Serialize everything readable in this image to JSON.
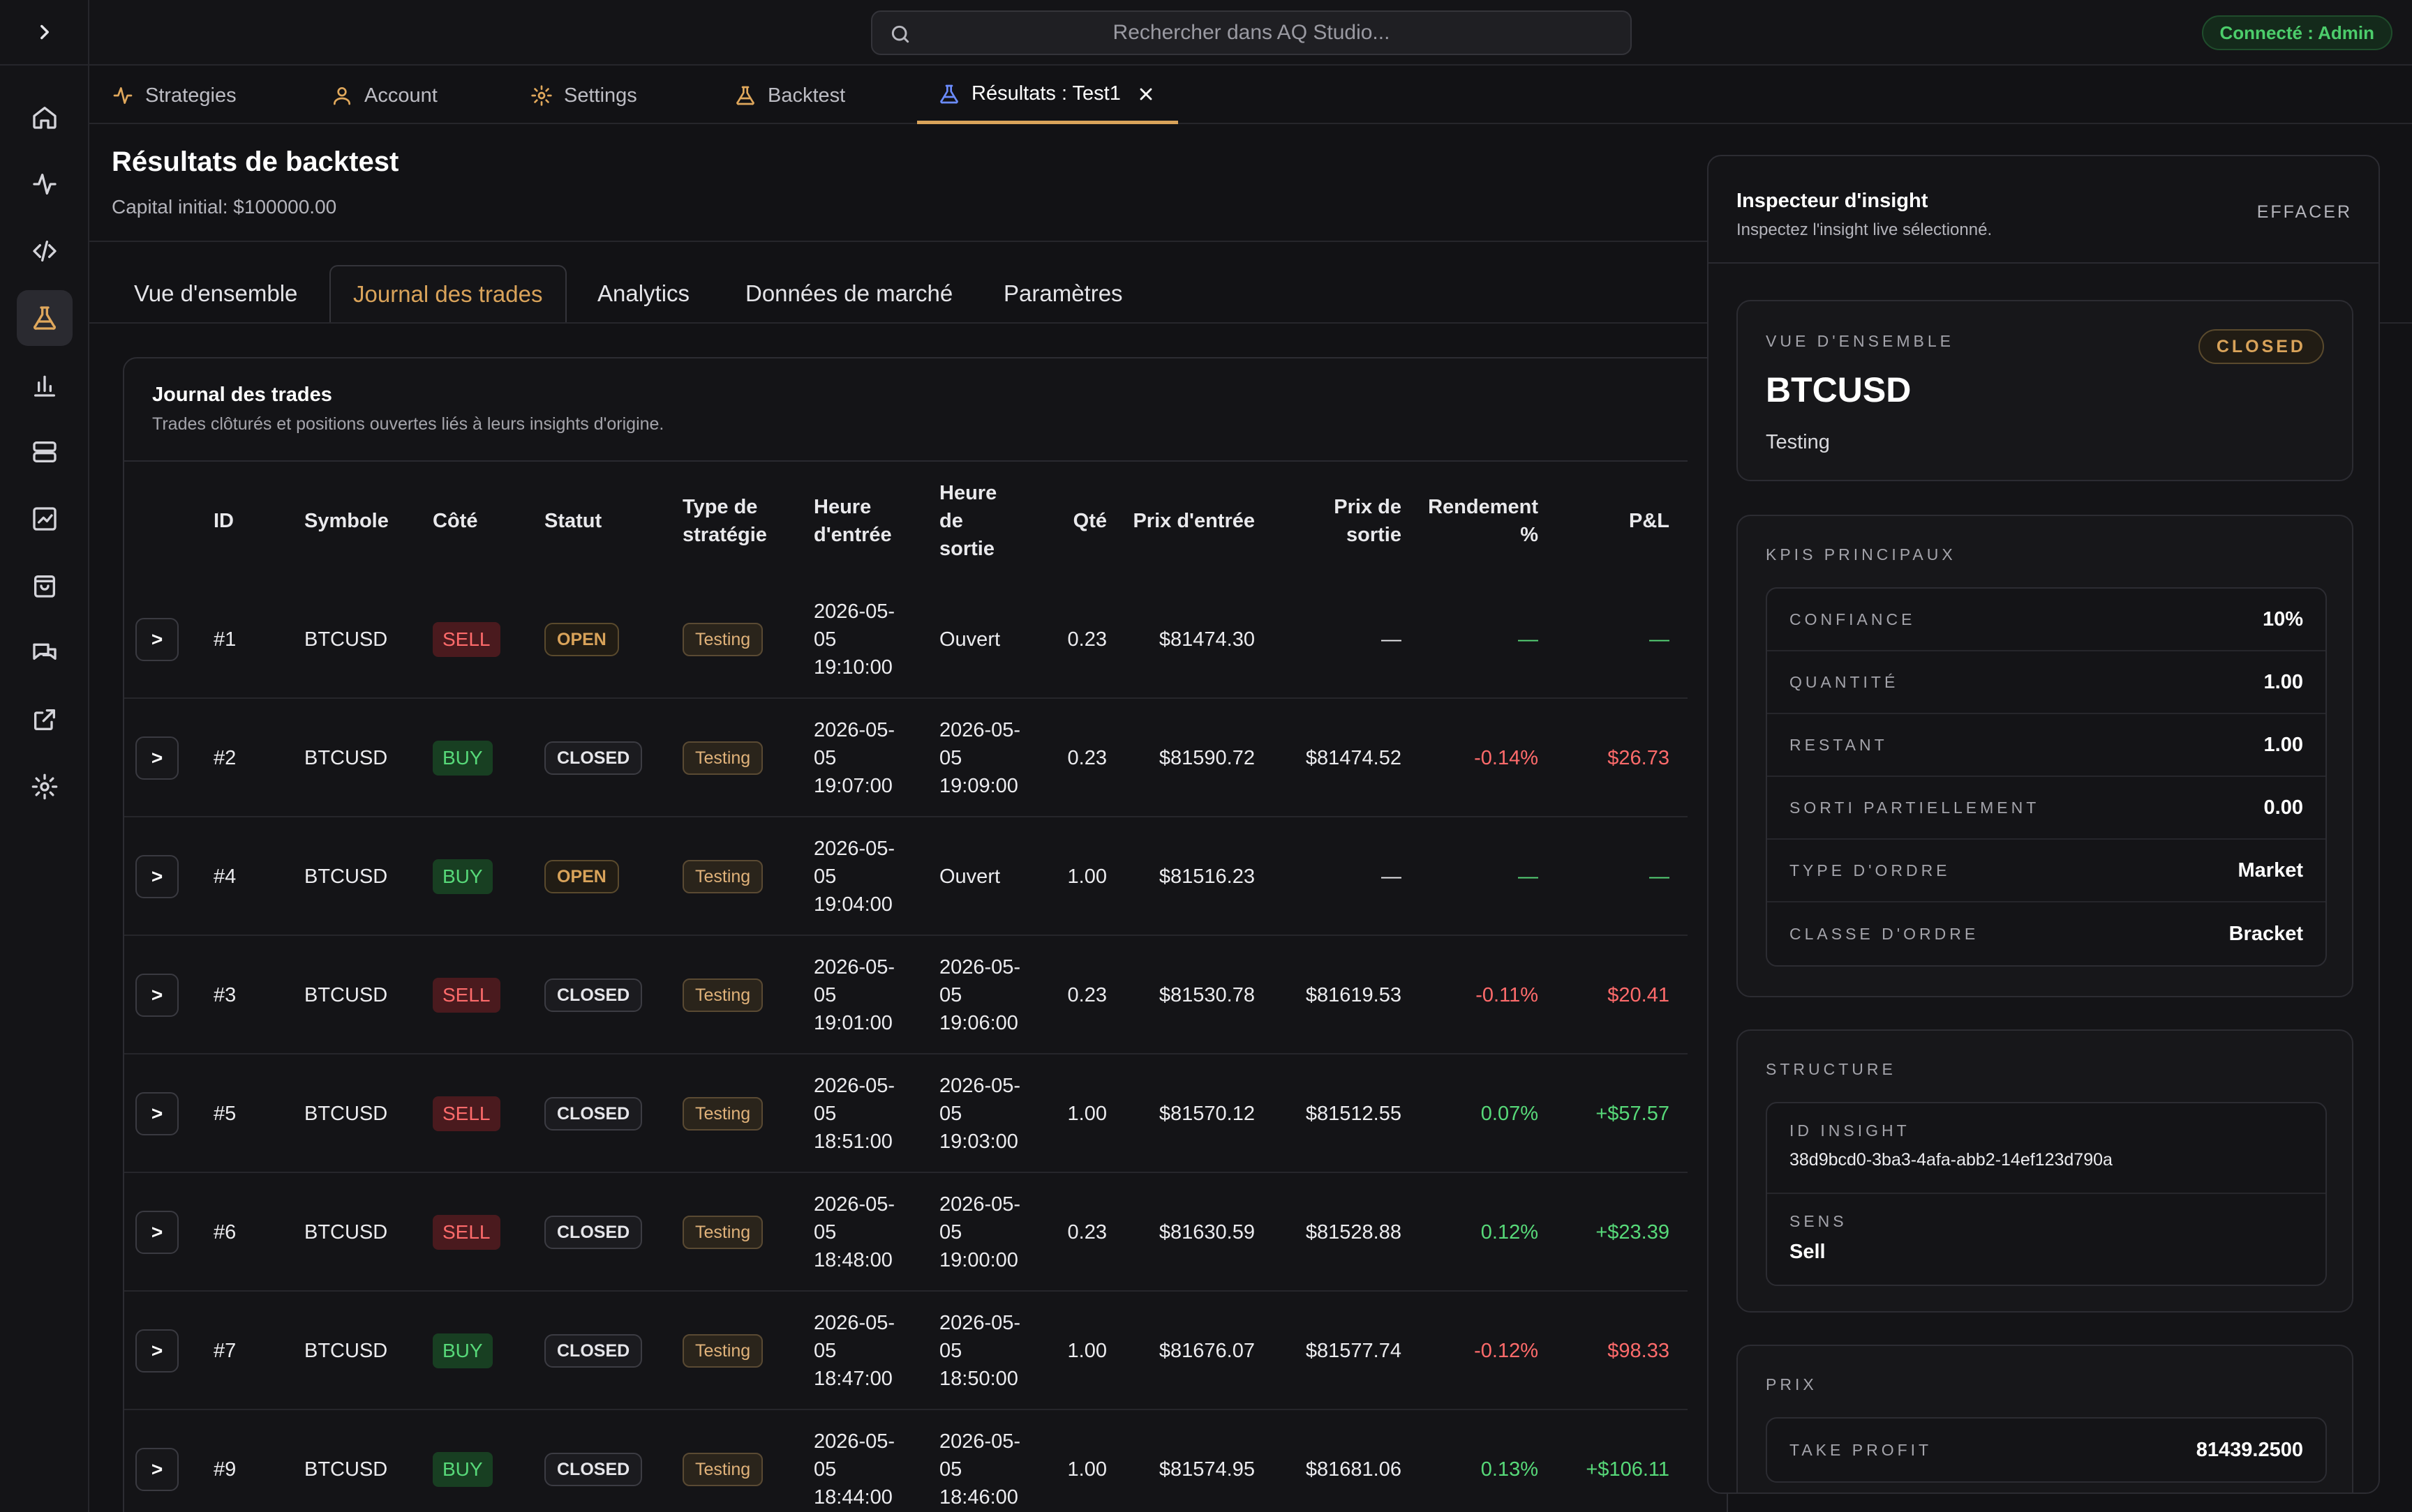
{
  "search": {
    "placeholder": "Rechercher dans AQ Studio..."
  },
  "user": {
    "status": "Connecté : Admin"
  },
  "tabs": [
    {
      "label": "Strategies",
      "icon": "activity-icon"
    },
    {
      "label": "Account",
      "icon": "user-icon"
    },
    {
      "label": "Settings",
      "icon": "gear-icon"
    },
    {
      "label": "Backtest",
      "icon": "flask-icon"
    },
    {
      "label": "Résultats : Test1",
      "icon": "flask-icon",
      "active": true
    }
  ],
  "page": {
    "title": "Résultats de backtest",
    "subtitle": "Capital initial: $100000.00"
  },
  "subtabs": [
    "Vue d'ensemble",
    "Journal des trades",
    "Analytics",
    "Données de marché",
    "Paramètres"
  ],
  "journal": {
    "title": "Journal des trades",
    "subtitle": "Trades clôturés et positions ouvertes liés à leurs insights d'origine.",
    "columns": {
      "id": "ID",
      "symbol": "Symbole",
      "side": "Côté",
      "status": "Statut",
      "type": "Type de stratégie",
      "entry_time": "Heure d'entrée",
      "exit_time": "Heure de sortie",
      "qty": "Qté",
      "entry_price": "Prix d'entrée",
      "exit_price": "Prix de sortie",
      "return_pct": "Rendement %",
      "pnl": "P&L"
    },
    "expand_label": ">",
    "rows": [
      {
        "id": "#1",
        "symbol": "BTCUSD",
        "side": "SELL",
        "status": "OPEN",
        "type": "Testing",
        "entry_time": "2026-05-05 19:10:00",
        "exit_time": "Ouvert",
        "qty": "0.23",
        "entry_price": "$81474.30",
        "exit_price": "—",
        "return_pct": "—",
        "pnl": "—"
      },
      {
        "id": "#2",
        "symbol": "BTCUSD",
        "side": "BUY",
        "status": "CLOSED",
        "type": "Testing",
        "entry_time": "2026-05-05 19:07:00",
        "exit_time": "2026-05-05 19:09:00",
        "qty": "0.23",
        "entry_price": "$81590.72",
        "exit_price": "$81474.52",
        "return_pct": "-0.14%",
        "pnl": "$26.73"
      },
      {
        "id": "#4",
        "symbol": "BTCUSD",
        "side": "BUY",
        "status": "OPEN",
        "type": "Testing",
        "entry_time": "2026-05-05 19:04:00",
        "exit_time": "Ouvert",
        "qty": "1.00",
        "entry_price": "$81516.23",
        "exit_price": "—",
        "return_pct": "—",
        "pnl": "—"
      },
      {
        "id": "#3",
        "symbol": "BTCUSD",
        "side": "SELL",
        "status": "CLOSED",
        "type": "Testing",
        "entry_time": "2026-05-05 19:01:00",
        "exit_time": "2026-05-05 19:06:00",
        "qty": "0.23",
        "entry_price": "$81530.78",
        "exit_price": "$81619.53",
        "return_pct": "-0.11%",
        "pnl": "$20.41"
      },
      {
        "id": "#5",
        "symbol": "BTCUSD",
        "side": "SELL",
        "status": "CLOSED",
        "type": "Testing",
        "entry_time": "2026-05-05 18:51:00",
        "exit_time": "2026-05-05 19:03:00",
        "qty": "1.00",
        "entry_price": "$81570.12",
        "exit_price": "$81512.55",
        "return_pct": "0.07%",
        "pnl": "+$57.57"
      },
      {
        "id": "#6",
        "symbol": "BTCUSD",
        "side": "SELL",
        "status": "CLOSED",
        "type": "Testing",
        "entry_time": "2026-05-05 18:48:00",
        "exit_time": "2026-05-05 19:00:00",
        "qty": "0.23",
        "entry_price": "$81630.59",
        "exit_price": "$81528.88",
        "return_pct": "0.12%",
        "pnl": "+$23.39"
      },
      {
        "id": "#7",
        "symbol": "BTCUSD",
        "side": "BUY",
        "status": "CLOSED",
        "type": "Testing",
        "entry_time": "2026-05-05 18:47:00",
        "exit_time": "2026-05-05 18:50:00",
        "qty": "1.00",
        "entry_price": "$81676.07",
        "exit_price": "$81577.74",
        "return_pct": "-0.12%",
        "pnl": "$98.33"
      },
      {
        "id": "#9",
        "symbol": "BTCUSD",
        "side": "BUY",
        "status": "CLOSED",
        "type": "Testing",
        "entry_time": "2026-05-05 18:44:00",
        "exit_time": "2026-05-05 18:46:00",
        "qty": "1.00",
        "entry_price": "$81574.95",
        "exit_price": "$81681.06",
        "return_pct": "0.13%",
        "pnl": "+$106.11"
      }
    ]
  },
  "inspector": {
    "title": "Inspecteur d'insight",
    "subtitle": "Inspectez l'insight live sélectionné.",
    "clear_label": "EFFACER",
    "overview": {
      "label": "VUE D'ENSEMBLE",
      "status": "CLOSED",
      "symbol": "BTCUSD",
      "strategy": "Testing"
    },
    "kpis": {
      "label": "KPIS PRINCIPAUX",
      "rows": [
        {
          "key": "CONFIANCE",
          "value": "10%"
        },
        {
          "key": "QUANTITÉ",
          "value": "1.00"
        },
        {
          "key": "RESTANT",
          "value": "1.00"
        },
        {
          "key": "SORTI PARTIELLEMENT",
          "value": "0.00"
        },
        {
          "key": "TYPE D'ORDRE",
          "value": "Market"
        },
        {
          "key": "CLASSE D'ORDRE",
          "value": "Bracket"
        }
      ]
    },
    "structure": {
      "label": "STRUCTURE",
      "insight_id_key": "ID INSIGHT",
      "insight_id": "38d9bcd0-3ba3-4afa-abb2-14ef123d790a",
      "direction_key": "SENS",
      "direction": "Sell"
    },
    "prices": {
      "label": "PRIX",
      "take_profit_key": "TAKE PROFIT",
      "take_profit": "81439.2500"
    }
  },
  "colors": {
    "accent": "#d9a35a",
    "positive": "#57d979",
    "negative": "#ff6b6b",
    "background": "#121215"
  }
}
